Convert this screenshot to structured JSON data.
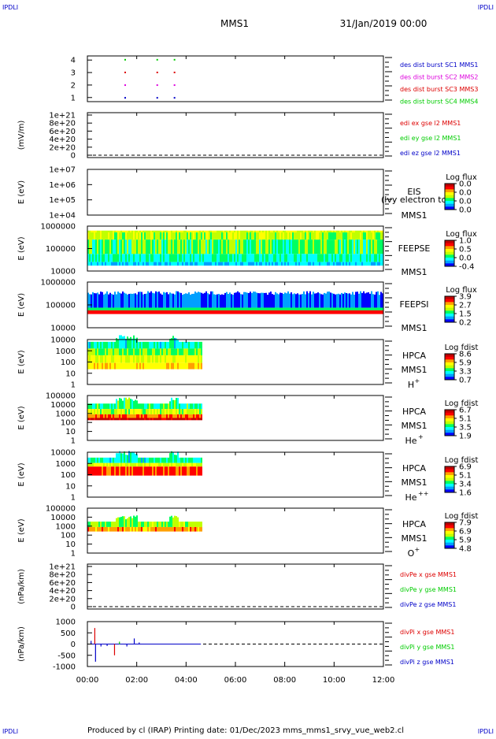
{
  "header": {
    "corner_tl": "IPDLI",
    "corner_tr": "IPDLI",
    "corner_bl": "IPDLI",
    "corner_br": "IPDLI",
    "title": "MMS1",
    "datetime": "31/Jan/2019 00:00"
  },
  "footer": {
    "credit": "Produced by cl (IRAP)    Printing date: 01/Dec/2023    mms_mms1_srvy_vue_web2.cl"
  },
  "colors": {
    "blue": "#0000c8",
    "magenta": "#dd00dd",
    "red": "#dd0000",
    "green": "#00cc00",
    "axis": "#000000",
    "colormap": [
      "#0000ff",
      "#00a0ff",
      "#00ffff",
      "#00ff60",
      "#c0ff00",
      "#ffff00",
      "#ffa000",
      "#ff0000",
      "#c00000"
    ]
  },
  "x_axis": {
    "ticks": [
      "00:00",
      "02:00",
      "04:00",
      "06:00",
      "08:00",
      "10:00",
      "12:00"
    ],
    "range_hours": [
      0,
      12
    ],
    "data_end_hours": 4.6
  },
  "chart_data": [
    {
      "id": "des-dist-burst",
      "type": "scatter",
      "ylabel": "",
      "yticks": [
        "4",
        "3",
        "2",
        "1"
      ],
      "ylim": [
        0.7,
        4.3
      ],
      "series": [
        {
          "name": "des dist burst SC1 MMS1",
          "color": "#0000c8",
          "y": 1,
          "x_hours": [
            1.5,
            2.8,
            3.5
          ]
        },
        {
          "name": "des dist burst SC2 MMS2",
          "color": "#dd00dd",
          "y": 2,
          "x_hours": [
            1.5,
            2.8,
            3.5
          ]
        },
        {
          "name": "des dist burst SC3 MMS3",
          "color": "#dd0000",
          "y": 3,
          "x_hours": [
            1.5,
            2.8,
            3.5
          ]
        },
        {
          "name": "des dist burst SC4 MMS4",
          "color": "#00cc00",
          "y": 4,
          "x_hours": [
            1.5,
            2.8,
            3.5
          ]
        }
      ]
    },
    {
      "id": "edi-e-gse",
      "type": "line",
      "ylabel": "(mV/m)",
      "yticks": [
        "1e+21",
        "8e+20",
        "6e+20",
        "4e+20",
        "2e+20",
        "0"
      ],
      "ylim": [
        0,
        1e+21
      ],
      "dashed_zero": true,
      "series": [
        {
          "name": "edi ex gse l2 MMS1",
          "color": "#dd0000"
        },
        {
          "name": "edi ey gse l2 MMS1",
          "color": "#00cc00"
        },
        {
          "name": "edi ez gse l2 MMS1",
          "color": "#0000c8"
        }
      ]
    },
    {
      "id": "eis",
      "type": "heatmap",
      "ylabel": "E (eV)",
      "yticks": [
        "1e+07",
        "1e+06",
        "1e+05",
        "1e+04"
      ],
      "ylim": [
        10000,
        10000000
      ],
      "labels": [
        "EIS",
        "MMS1"
      ],
      "overlay_label": "(lvy electron to",
      "colorbar": {
        "title": "Log flux",
        "ticks": [
          "0.0",
          "0.0",
          "0.0",
          "0.0"
        ]
      },
      "fill": "none"
    },
    {
      "id": "feepse",
      "type": "heatmap",
      "ylabel": "E (eV)",
      "yticks": [
        "1000000",
        "100000",
        "10000"
      ],
      "ylim": [
        10000,
        1000000
      ],
      "labels": [
        "FEEPSE",
        "MMS1"
      ],
      "colorbar": {
        "title": "Log flux",
        "ticks": [
          "1.0",
          "0.5",
          "0.0",
          "-0.4"
        ]
      },
      "fill": "feeps-electron",
      "x_end_hours": 12
    },
    {
      "id": "feepsi",
      "type": "heatmap",
      "ylabel": "E (eV)",
      "yticks": [
        "1000000",
        "100000",
        "10000"
      ],
      "ylim": [
        10000,
        1000000
      ],
      "labels": [
        "FEEPSI",
        "MMS1"
      ],
      "colorbar": {
        "title": "Log flux",
        "ticks": [
          "3.9",
          "2.7",
          "1.5",
          "0.2"
        ]
      },
      "fill": "feeps-ion",
      "x_end_hours": 12
    },
    {
      "id": "hpca-h",
      "type": "heatmap",
      "ylabel": "E (eV)",
      "yticks": [
        "10000",
        "1000",
        "100",
        "10",
        "1"
      ],
      "ylim": [
        1,
        40000
      ],
      "labels": [
        "HPCA",
        "MMS1"
      ],
      "species": "H",
      "species_sup": "+",
      "colorbar": {
        "title": "Log fdist",
        "ticks": [
          "8.6",
          "5.9",
          "3.3",
          "0.7"
        ]
      },
      "fill": "hpca-h",
      "x_end_hours": 4.6
    },
    {
      "id": "hpca-he",
      "type": "heatmap",
      "ylabel": "E (eV)",
      "yticks": [
        "100000",
        "10000",
        "1000",
        "100",
        "10",
        "1"
      ],
      "ylim": [
        1,
        100000
      ],
      "labels": [
        "HPCA",
        "MMS1"
      ],
      "species": "He",
      "species_sup": "+",
      "colorbar": {
        "title": "Log fdist",
        "ticks": [
          "6.7",
          "5.1",
          "3.5",
          "1.9"
        ]
      },
      "fill": "hpca-he",
      "x_end_hours": 4.6
    },
    {
      "id": "hpca-he2",
      "type": "heatmap",
      "ylabel": "E (eV)",
      "yticks": [
        "10000",
        "1000",
        "100",
        "10",
        "1"
      ],
      "ylim": [
        1,
        40000
      ],
      "labels": [
        "HPCA",
        "MMS1"
      ],
      "species": "He",
      "species_sup": "++",
      "colorbar": {
        "title": "Log fdist",
        "ticks": [
          "6.9",
          "5.1",
          "3.4",
          "1.6"
        ]
      },
      "fill": "hpca-he2",
      "x_end_hours": 4.6
    },
    {
      "id": "hpca-o",
      "type": "heatmap",
      "ylabel": "E (eV)",
      "yticks": [
        "100000",
        "10000",
        "1000",
        "100",
        "10",
        "1"
      ],
      "ylim": [
        1,
        100000
      ],
      "labels": [
        "HPCA",
        "MMS1"
      ],
      "species": "O",
      "species_sup": "+",
      "colorbar": {
        "title": "Log fdist",
        "ticks": [
          "7.9",
          "6.9",
          "5.9",
          "4.8"
        ]
      },
      "fill": "hpca-o",
      "x_end_hours": 4.6
    },
    {
      "id": "divpe",
      "type": "line",
      "ylabel": "(nPa/km)",
      "yticks": [
        "1e+21",
        "8e+20",
        "6e+20",
        "4e+20",
        "2e+20",
        "0"
      ],
      "ylim": [
        0,
        1e+21
      ],
      "dashed_zero": true,
      "series": [
        {
          "name": "divPe x gse MMS1",
          "color": "#dd0000"
        },
        {
          "name": "divPe y gse MMS1",
          "color": "#00cc00"
        },
        {
          "name": "divPe z gse MMS1",
          "color": "#0000c8"
        }
      ]
    },
    {
      "id": "divpi",
      "type": "line",
      "ylabel": "(nPa/km)",
      "yticks": [
        "1000",
        "500",
        "0",
        "-500",
        "-1000"
      ],
      "ylim": [
        -1400,
        1400
      ],
      "dashed_zero": true,
      "series": [
        {
          "name": "divPi x gse MMS1",
          "color": "#dd0000"
        },
        {
          "name": "divPi y gse MMS1",
          "color": "#00cc00"
        },
        {
          "name": "divPi z gse MMS1",
          "color": "#0000c8"
        }
      ],
      "spikes": [
        {
          "x_hours": 0.3,
          "y": 1000,
          "color": "#dd0000"
        },
        {
          "x_hours": 0.33,
          "y": -1100,
          "color": "#0000c8"
        },
        {
          "x_hours": 0.15,
          "y": 200,
          "color": "#0000c8"
        },
        {
          "x_hours": 0.55,
          "y": -150,
          "color": "#0000c8"
        },
        {
          "x_hours": 0.8,
          "y": -120,
          "color": "#0000c8"
        },
        {
          "x_hours": 1.1,
          "y": -700,
          "color": "#dd0000"
        },
        {
          "x_hours": 1.3,
          "y": 150,
          "color": "#00cc00"
        },
        {
          "x_hours": 1.6,
          "y": -150,
          "color": "#0000c8"
        },
        {
          "x_hours": 1.9,
          "y": 350,
          "color": "#0000c8"
        },
        {
          "x_hours": 2.1,
          "y": 100,
          "color": "#0000c8"
        }
      ]
    }
  ]
}
